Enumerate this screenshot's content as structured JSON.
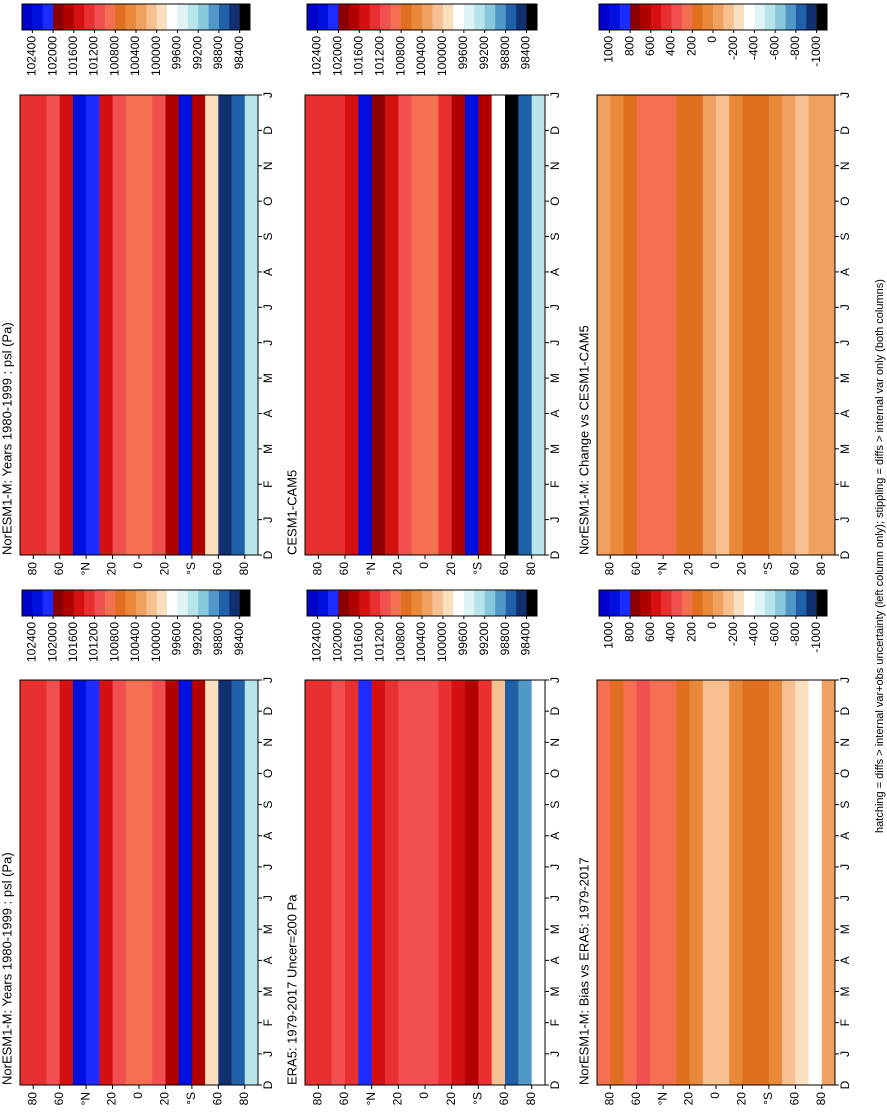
{
  "chart_data": [
    {
      "type": "contour",
      "title": "NorESM1-M: Years 1980-1999 : psl (Pa)",
      "categories": [
        "D",
        "J",
        "F",
        "M",
        "A",
        "M",
        "J",
        "J",
        "A",
        "S",
        "O",
        "N",
        "D",
        "J"
      ],
      "xlim": [
        90,
        -90
      ],
      "xticks": [
        80,
        60,
        {
          "value": 40,
          "label": "°N"
        },
        20,
        0,
        {
          "value": -20,
          "label": "20"
        },
        {
          "value": -40,
          "label": "°S"
        },
        {
          "value": -60,
          "label": "60"
        },
        {
          "value": -80,
          "label": "80"
        }
      ],
      "x": [
        85,
        75,
        65,
        55,
        45,
        35,
        25,
        15,
        5,
        -5,
        -15,
        -25,
        -35,
        -45,
        -55,
        -65,
        -75,
        -85
      ],
      "values": [
        101400,
        101300,
        101200,
        101600,
        102400,
        102200,
        101600,
        101100,
        100900,
        100900,
        101200,
        101800,
        102400,
        101800,
        100000,
        98600,
        98800,
        99400
      ],
      "clim": [
        102600,
        98200
      ],
      "cticks": [
        102400,
        102000,
        101600,
        101200,
        100800,
        100400,
        100000,
        99600,
        99200,
        98800,
        98400
      ],
      "colors": [
        "#0000c8",
        "#0010e0",
        "#1a2cff",
        "#8b0000",
        "#b00000",
        "#d41010",
        "#e83030",
        "#f25050",
        "#f47050",
        "#e07020",
        "#e88a3a",
        "#f0a060",
        "#f6c090",
        "#fbe0c0",
        "#ffffff",
        "#e0f4f6",
        "#b8e4ec",
        "#88c8dc",
        "#5098c8",
        "#2060a8",
        "#103070",
        "#000000"
      ]
    },
    {
      "type": "contour",
      "title": "NorESM1-M: Years 1980-1999 : psl (Pa)",
      "categories": [
        "D",
        "J",
        "F",
        "M",
        "A",
        "M",
        "J",
        "J",
        "A",
        "S",
        "O",
        "N",
        "D",
        "J"
      ],
      "xlim": [
        90,
        -90
      ],
      "xticks": [
        80,
        60,
        {
          "value": 40,
          "label": "°N"
        },
        20,
        0,
        {
          "value": -20,
          "label": "20"
        },
        {
          "value": -40,
          "label": "°S"
        },
        {
          "value": -60,
          "label": "60"
        },
        {
          "value": -80,
          "label": "80"
        }
      ],
      "x": [
        85,
        75,
        65,
        55,
        45,
        35,
        25,
        15,
        5,
        -5,
        -15,
        -25,
        -35,
        -45,
        -55,
        -65,
        -75,
        -85
      ],
      "values": [
        101400,
        101300,
        101200,
        101600,
        102400,
        102200,
        101600,
        101100,
        100900,
        100900,
        101200,
        101800,
        102400,
        101800,
        100000,
        98600,
        98800,
        99400
      ],
      "clim": [
        102600,
        98200
      ],
      "cticks": [
        102400,
        102000,
        101600,
        101200,
        100800,
        100400,
        100000,
        99600,
        99200,
        98800,
        98400
      ],
      "colors": [
        "#0000c8",
        "#0010e0",
        "#1a2cff",
        "#8b0000",
        "#b00000",
        "#d41010",
        "#e83030",
        "#f25050",
        "#f47050",
        "#e07020",
        "#e88a3a",
        "#f0a060",
        "#f6c090",
        "#fbe0c0",
        "#ffffff",
        "#e0f4f6",
        "#b8e4ec",
        "#88c8dc",
        "#5098c8",
        "#2060a8",
        "#103070",
        "#000000"
      ]
    },
    {
      "type": "contour",
      "title": "CESM1-CAM5",
      "categories": [
        "D",
        "J",
        "F",
        "M",
        "A",
        "M",
        "J",
        "J",
        "A",
        "S",
        "O",
        "N",
        "D",
        "J"
      ],
      "xlim": [
        90,
        -90
      ],
      "xticks": [
        80,
        60,
        {
          "value": 40,
          "label": "°N"
        },
        20,
        0,
        {
          "value": -20,
          "label": "20"
        },
        {
          "value": -40,
          "label": "°S"
        },
        {
          "value": -60,
          "label": "60"
        },
        {
          "value": -80,
          "label": "80"
        }
      ],
      "x": [
        85,
        75,
        65,
        55,
        45,
        35,
        25,
        15,
        5,
        -5,
        -15,
        -25,
        -35,
        -45,
        -55,
        -65,
        -75,
        -85
      ],
      "values": [
        101300,
        101300,
        101400,
        101600,
        102400,
        102000,
        101500,
        101200,
        101000,
        100900,
        101300,
        101800,
        102400,
        101800,
        99800,
        98400,
        98800,
        99400
      ],
      "clim": [
        102600,
        98200
      ],
      "cticks": [
        102400,
        102000,
        101600,
        101200,
        100800,
        100400,
        100000,
        99600,
        99200,
        98800,
        98400
      ],
      "colors": [
        "#0000c8",
        "#0010e0",
        "#1a2cff",
        "#8b0000",
        "#b00000",
        "#d41010",
        "#e83030",
        "#f25050",
        "#f47050",
        "#e07020",
        "#e88a3a",
        "#f0a060",
        "#f6c090",
        "#fbe0c0",
        "#ffffff",
        "#e0f4f6",
        "#b8e4ec",
        "#88c8dc",
        "#5098c8",
        "#2060a8",
        "#103070",
        "#000000"
      ]
    },
    {
      "type": "contour",
      "title": "ERA5: 1979-2017 Uncer=200 Pa",
      "categories": [
        "D",
        "J",
        "F",
        "M",
        "A",
        "M",
        "J",
        "J",
        "A",
        "S",
        "O",
        "N",
        "D",
        "J"
      ],
      "xlim": [
        90,
        -90
      ],
      "xticks": [
        80,
        60,
        {
          "value": 40,
          "label": "°N"
        },
        20,
        0,
        {
          "value": -20,
          "label": "20"
        },
        {
          "value": -40,
          "label": "°S"
        },
        {
          "value": -60,
          "label": "60"
        },
        {
          "value": -80,
          "label": "80"
        }
      ],
      "x": [
        85,
        75,
        65,
        55,
        45,
        35,
        25,
        15,
        5,
        -5,
        -15,
        -25,
        -35,
        -45,
        -55,
        -65,
        -75,
        -85
      ],
      "values": [
        101400,
        101300,
        101200,
        101400,
        102200,
        101600,
        101300,
        101200,
        101200,
        101200,
        101300,
        101500,
        101800,
        101400,
        100200,
        98800,
        99000,
        99600
      ],
      "clim": [
        102600,
        98200
      ],
      "cticks": [
        102400,
        102000,
        101600,
        101200,
        100800,
        100400,
        100000,
        99600,
        99200,
        98800,
        98400
      ],
      "colors": [
        "#0000c8",
        "#0010e0",
        "#1a2cff",
        "#8b0000",
        "#b00000",
        "#d41010",
        "#e83030",
        "#f25050",
        "#f47050",
        "#e07020",
        "#e88a3a",
        "#f0a060",
        "#f6c090",
        "#fbe0c0",
        "#ffffff",
        "#e0f4f6",
        "#b8e4ec",
        "#88c8dc",
        "#5098c8",
        "#2060a8",
        "#103070",
        "#000000"
      ]
    },
    {
      "type": "contour",
      "title": "NorESM1-M: Change vs CESM1-CAM5",
      "categories": [
        "D",
        "J",
        "F",
        "M",
        "A",
        "M",
        "J",
        "J",
        "A",
        "S",
        "O",
        "N",
        "D",
        "J"
      ],
      "xlim": [
        90,
        -90
      ],
      "xticks": [
        80,
        60,
        {
          "value": 40,
          "label": "°N"
        },
        20,
        0,
        {
          "value": -20,
          "label": "20"
        },
        {
          "value": -40,
          "label": "°S"
        },
        {
          "value": -60,
          "label": "60"
        },
        {
          "value": -80,
          "label": "80"
        }
      ],
      "x": [
        85,
        75,
        65,
        55,
        45,
        35,
        25,
        15,
        5,
        -5,
        -15,
        -25,
        -35,
        -45,
        -55,
        -65,
        -75,
        -85
      ],
      "values": [
        0,
        100,
        200,
        300,
        300,
        300,
        200,
        200,
        0,
        -100,
        100,
        200,
        200,
        100,
        0,
        -100,
        0,
        0
      ],
      "clim": [
        1100,
        -1100
      ],
      "cticks": [
        1000,
        800,
        600,
        400,
        200,
        0,
        -200,
        -400,
        -600,
        -800,
        -1000
      ],
      "colors": [
        "#0000c8",
        "#0010e0",
        "#1a2cff",
        "#8b0000",
        "#b00000",
        "#d41010",
        "#e83030",
        "#f25050",
        "#f47050",
        "#e07020",
        "#e88a3a",
        "#f0a060",
        "#f6c090",
        "#fbe0c0",
        "#ffffff",
        "#e0f4f6",
        "#b8e4ec",
        "#88c8dc",
        "#5098c8",
        "#2060a8",
        "#103070",
        "#000000"
      ]
    },
    {
      "type": "contour",
      "title": "NorESM1-M: Bias vs ERA5: 1979-2017",
      "categories": [
        "D",
        "J",
        "F",
        "M",
        "A",
        "M",
        "J",
        "J",
        "A",
        "S",
        "O",
        "N",
        "D",
        "J"
      ],
      "xlim": [
        90,
        -90
      ],
      "xticks": [
        80,
        60,
        {
          "value": 40,
          "label": "°N"
        },
        20,
        0,
        {
          "value": -20,
          "label": "20"
        },
        {
          "value": -40,
          "label": "°S"
        },
        {
          "value": -60,
          "label": "60"
        },
        {
          "value": -80,
          "label": "80"
        }
      ],
      "x": [
        85,
        75,
        65,
        55,
        45,
        35,
        25,
        15,
        5,
        -5,
        -15,
        -25,
        -35,
        -45,
        -55,
        -65,
        -75,
        -85
      ],
      "values": [
        300,
        200,
        300,
        400,
        300,
        300,
        200,
        100,
        -100,
        -100,
        100,
        200,
        200,
        100,
        -100,
        -200,
        -300,
        0
      ],
      "clim": [
        1100,
        -1100
      ],
      "cticks": [
        1000,
        800,
        600,
        400,
        200,
        0,
        -200,
        -400,
        -600,
        -800,
        -1000
      ],
      "colors": [
        "#0000c8",
        "#0010e0",
        "#1a2cff",
        "#8b0000",
        "#b00000",
        "#d41010",
        "#e83030",
        "#f25050",
        "#f47050",
        "#e07020",
        "#e88a3a",
        "#f0a060",
        "#f6c090",
        "#fbe0c0",
        "#ffffff",
        "#e0f4f6",
        "#b8e4ec",
        "#88c8dc",
        "#5098c8",
        "#2060a8",
        "#103070",
        "#000000"
      ]
    }
  ],
  "footnote": "hatching = diffs > internal var+obs uncertainty (left column only); stippling = diffs > internal var only (both columns)"
}
